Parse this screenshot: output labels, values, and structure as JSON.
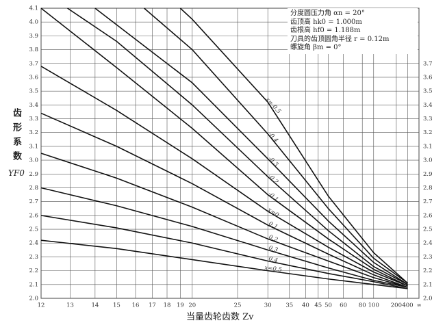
{
  "chart_data": {
    "type": "line",
    "y_label": "齿形系数",
    "y_symbol": "YF0",
    "x_label": "当量齿轮齿数 Zv",
    "annotations": [
      "分度圆压力角 αn = 20°",
      "齿顶高 hk0 = 1.000m",
      "齿根高 hf0 = 1.188m",
      "刀具的齿顶圆角半径 r = 0.12m",
      "螺旋角 βm = 0°"
    ],
    "xscale": "reciprocal",
    "xlim": [
      12,
      null
    ],
    "xticks": [
      12,
      13,
      14,
      15,
      16,
      17,
      18,
      19,
      20,
      25,
      30,
      35,
      40,
      45,
      50,
      60,
      80,
      100,
      200,
      400,
      {
        "value": null,
        "label": "∞"
      }
    ],
    "ylim": [
      2.0,
      4.1
    ],
    "yticks": [
      {
        "value": 2.0,
        "label": "2.0"
      },
      2.1,
      2.2,
      2.3,
      2.4,
      2.5,
      2.6,
      2.7,
      2.8,
      2.9,
      {
        "value": 3.0,
        "label": "3.0"
      },
      3.1,
      3.2,
      3.3,
      3.4,
      3.5,
      3.6,
      3.7,
      3.8,
      3.9,
      {
        "value": 4.0,
        "label": "4.0"
      },
      4.1
    ],
    "grid": true,
    "color": "#111",
    "series": [
      {
        "name": "x=-0.5",
        "x": [
          19,
          20,
          30,
          50,
          100,
          400
        ],
        "values": [
          4.1,
          4.02,
          3.42,
          2.74,
          2.33,
          2.11
        ]
      },
      {
        "name": "-0.4",
        "x": [
          16.5,
          20,
          30,
          50,
          100,
          400
        ],
        "values": [
          4.1,
          3.8,
          3.19,
          2.65,
          2.29,
          2.11
        ]
      },
      {
        "name": "-0.3",
        "x": [
          14,
          15,
          20,
          30,
          50,
          100,
          400
        ],
        "values": [
          4.1,
          3.98,
          3.56,
          3.01,
          2.56,
          2.26,
          2.1
        ]
      },
      {
        "name": "-0.2",
        "x": [
          12.9,
          15,
          20,
          30,
          50,
          100,
          400
        ],
        "values": [
          4.1,
          3.86,
          3.4,
          2.88,
          2.49,
          2.23,
          2.1
        ]
      },
      {
        "name": "-0.1",
        "x": [
          12,
          15,
          20,
          30,
          50,
          100,
          400
        ],
        "values": [
          4.1,
          3.67,
          3.23,
          2.75,
          2.43,
          2.21,
          2.09
        ]
      },
      {
        "name": "x=0",
        "x": [
          12,
          15,
          20,
          30,
          50,
          100,
          400
        ],
        "values": [
          3.68,
          3.36,
          3.01,
          2.63,
          2.37,
          2.19,
          2.09
        ]
      },
      {
        "name": "0.1",
        "x": [
          12,
          15,
          20,
          30,
          50,
          100,
          400
        ],
        "values": [
          3.34,
          3.1,
          2.83,
          2.53,
          2.32,
          2.17,
          2.08
        ]
      },
      {
        "name": "0.2",
        "x": [
          12,
          15,
          20,
          30,
          50,
          100,
          400
        ],
        "values": [
          3.05,
          2.87,
          2.66,
          2.43,
          2.27,
          2.15,
          2.08
        ]
      },
      {
        "name": "0.3",
        "x": [
          12,
          15,
          20,
          30,
          50,
          100,
          400
        ],
        "values": [
          2.8,
          2.67,
          2.52,
          2.35,
          2.22,
          2.13,
          2.08
        ]
      },
      {
        "name": "0.4",
        "x": [
          12,
          15,
          20,
          30,
          50,
          100,
          400
        ],
        "values": [
          2.6,
          2.51,
          2.4,
          2.27,
          2.18,
          2.12,
          2.07
        ]
      },
      {
        "name": "x=0.5",
        "x": [
          12,
          15,
          20,
          30,
          50,
          100,
          400
        ],
        "values": [
          2.42,
          2.36,
          2.28,
          2.2,
          2.14,
          2.1,
          2.07
        ]
      }
    ]
  }
}
